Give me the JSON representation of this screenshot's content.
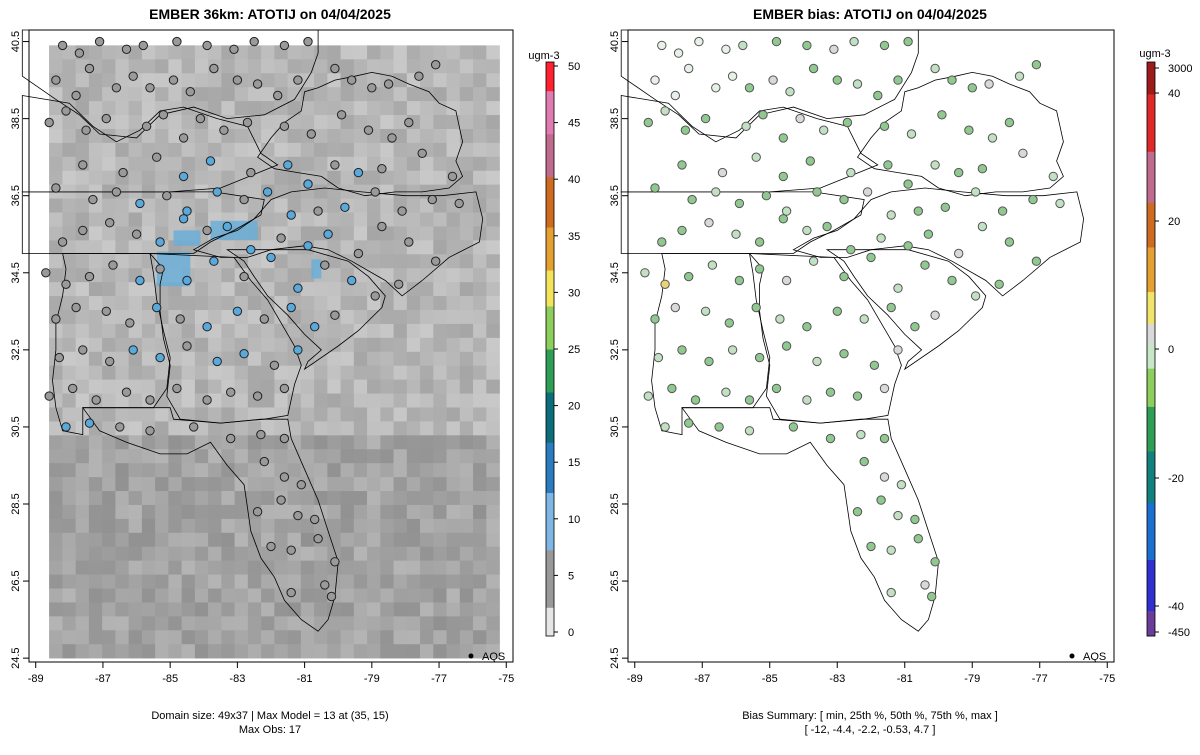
{
  "panels": [
    {
      "title": "EMBER 36km: ATOTIJ on 04/04/2025",
      "legend_unit": "ugm-3",
      "legend_ticks": [
        "0",
        "5",
        "10",
        "15",
        "20",
        "25",
        "30",
        "35",
        "40",
        "45",
        "50"
      ],
      "legend_text": "AQS",
      "footer_lines": [
        "Domain size: 49x37 | Max Model = 13 at (35, 15)",
        "Max Obs: 17"
      ]
    },
    {
      "title": "EMBER bias: ATOTIJ on 04/04/2025",
      "legend_unit": "ugm-3",
      "legend_ticks": [
        "3000",
        "40",
        "20",
        "0",
        "-20",
        "-40",
        "-450"
      ],
      "legend_text": "AQS",
      "footer_lines": [
        "Bias Summary: [ min, 25th %, 50th %, 75th %, max ]",
        "[ -12,   -4.4,   -2.2,   -0.53,   4.7 ]"
      ]
    }
  ],
  "chart_data": [
    {
      "type": "scatter",
      "title": "EMBER 36km: ATOTIJ on 04/04/2025",
      "xticks": [
        "-89",
        "-87",
        "-85",
        "-83",
        "-81",
        "-79",
        "-77",
        "-75"
      ],
      "yticks": [
        "40.5",
        "38.5",
        "36.5",
        "34.5",
        "32.5",
        "30.5",
        "28.5",
        "26.5",
        "24.5"
      ],
      "xlim": [
        -89.2,
        -74.8
      ],
      "ylim": [
        24.4,
        40.8
      ],
      "colorbar_range": [
        0,
        50
      ],
      "legend": "AQS",
      "domain_size": "49x37",
      "max_model": 13,
      "max_model_cell": [
        35,
        15
      ],
      "max_obs": 17,
      "colors": {
        "model_field": "#b8b8b8",
        "obs_low": "#9a9a9a",
        "obs_high": "#5aa9dc"
      }
    },
    {
      "type": "scatter",
      "title": "EMBER bias: ATOTIJ on 04/04/2025",
      "xticks": [
        "-89",
        "-87",
        "-85",
        "-83",
        "-81",
        "-79",
        "-77",
        "-75"
      ],
      "yticks": [
        "40.5",
        "38.5",
        "36.5",
        "34.5",
        "32.5",
        "30.5",
        "28.5",
        "26.5",
        "24.5"
      ],
      "xlim": [
        -89.2,
        -74.8
      ],
      "ylim": [
        24.4,
        40.8
      ],
      "colorbar_ticks": [
        3000,
        40,
        20,
        0,
        -20,
        -40,
        -450
      ],
      "legend": "AQS",
      "bias_summary": {
        "min": -12,
        "p25": -4.4,
        "p50": -2.2,
        "p75": -0.53,
        "max": 4.7
      },
      "colors": {
        "bias_neg": "#8fc98f",
        "bias_pos": "#e8d57a",
        "bias_zero": "#d9d9d9"
      }
    }
  ],
  "stations": [
    [
      -88.2,
      40.4
    ],
    [
      -87.7,
      40.2
    ],
    [
      -87.1,
      40.5
    ],
    [
      -86.3,
      40.3
    ],
    [
      -85.8,
      40.4
    ],
    [
      -84.8,
      40.5
    ],
    [
      -83.9,
      40.4
    ],
    [
      -83.1,
      40.3
    ],
    [
      -82.5,
      40.5
    ],
    [
      -81.6,
      40.4
    ],
    [
      -80.9,
      40.5
    ],
    [
      -88.4,
      39.5
    ],
    [
      -87.8,
      39.1
    ],
    [
      -87.4,
      39.8
    ],
    [
      -86.6,
      39.3
    ],
    [
      -86.1,
      39.6
    ],
    [
      -85.6,
      39.3
    ],
    [
      -84.9,
      39.5
    ],
    [
      -84.4,
      39.2
    ],
    [
      -83.7,
      39.8
    ],
    [
      -83.0,
      39.5
    ],
    [
      -82.4,
      39.4
    ],
    [
      -81.8,
      39.1
    ],
    [
      -81.2,
      39.5
    ],
    [
      -80.1,
      39.8
    ],
    [
      -79.6,
      39.5
    ],
    [
      -79.0,
      39.3
    ],
    [
      -78.5,
      39.4
    ],
    [
      -77.6,
      39.6
    ],
    [
      -77.1,
      39.9
    ],
    [
      -88.6,
      38.4
    ],
    [
      -88.1,
      38.7
    ],
    [
      -87.5,
      38.2
    ],
    [
      -86.9,
      38.5
    ],
    [
      -85.7,
      38.3
    ],
    [
      -85.2,
      38.6
    ],
    [
      -84.6,
      38.0
    ],
    [
      -84.1,
      38.5
    ],
    [
      -83.4,
      38.2
    ],
    [
      -82.7,
      38.4
    ],
    [
      -81.6,
      38.3
    ],
    [
      -80.8,
      38.1
    ],
    [
      -79.9,
      38.6
    ],
    [
      -79.1,
      38.2
    ],
    [
      -78.4,
      38.0
    ],
    [
      -77.9,
      38.4
    ],
    [
      -87.6,
      37.3
    ],
    [
      -86.4,
      37.1
    ],
    [
      -85.4,
      37.5
    ],
    [
      -84.6,
      37.0
    ],
    [
      -83.8,
      37.4
    ],
    [
      -82.6,
      37.1
    ],
    [
      -81.5,
      37.3
    ],
    [
      -80.9,
      36.8
    ],
    [
      -80.1,
      37.3
    ],
    [
      -79.4,
      37.1
    ],
    [
      -78.7,
      37.2
    ],
    [
      -77.5,
      37.6
    ],
    [
      -76.6,
      37.0
    ],
    [
      -88.4,
      36.7
    ],
    [
      -87.3,
      36.4
    ],
    [
      -86.6,
      36.6
    ],
    [
      -85.9,
      36.3
    ],
    [
      -85.1,
      36.5
    ],
    [
      -84.5,
      36.1
    ],
    [
      -83.6,
      36.6
    ],
    [
      -82.8,
      36.4
    ],
    [
      -82.1,
      36.6
    ],
    [
      -81.4,
      36.0
    ],
    [
      -80.6,
      36.1
    ],
    [
      -79.8,
      36.2
    ],
    [
      -78.9,
      36.6
    ],
    [
      -78.1,
      36.1
    ],
    [
      -77.2,
      36.4
    ],
    [
      -76.4,
      36.3
    ],
    [
      -88.2,
      35.3
    ],
    [
      -87.6,
      35.6
    ],
    [
      -86.8,
      35.8
    ],
    [
      -86.0,
      35.5
    ],
    [
      -85.3,
      35.3
    ],
    [
      -84.6,
      35.9
    ],
    [
      -83.9,
      35.6
    ],
    [
      -83.3,
      35.7
    ],
    [
      -82.6,
      35.1
    ],
    [
      -81.7,
      35.4
    ],
    [
      -80.9,
      35.2
    ],
    [
      -80.3,
      35.5
    ],
    [
      -79.4,
      35.0
    ],
    [
      -78.7,
      35.7
    ],
    [
      -77.9,
      35.3
    ],
    [
      -77.1,
      34.8
    ],
    [
      -88.7,
      34.5
    ],
    [
      -88.1,
      34.2
    ],
    [
      -87.4,
      34.4
    ],
    [
      -86.7,
      34.7
    ],
    [
      -85.9,
      34.3
    ],
    [
      -85.3,
      34.6
    ],
    [
      -84.5,
      34.3
    ],
    [
      -83.7,
      34.8
    ],
    [
      -82.8,
      34.4
    ],
    [
      -82.0,
      34.9
    ],
    [
      -81.2,
      34.1
    ],
    [
      -80.4,
      34.7
    ],
    [
      -79.6,
      34.3
    ],
    [
      -78.9,
      33.9
    ],
    [
      -78.2,
      34.2
    ],
    [
      -88.4,
      33.3
    ],
    [
      -87.8,
      33.6
    ],
    [
      -86.9,
      33.5
    ],
    [
      -86.2,
      33.2
    ],
    [
      -85.4,
      33.6
    ],
    [
      -84.7,
      33.3
    ],
    [
      -83.9,
      33.1
    ],
    [
      -83.0,
      33.5
    ],
    [
      -82.2,
      33.3
    ],
    [
      -81.4,
      33.6
    ],
    [
      -80.7,
      33.1
    ],
    [
      -80.1,
      33.4
    ],
    [
      -88.3,
      32.3
    ],
    [
      -87.6,
      32.5
    ],
    [
      -86.8,
      32.2
    ],
    [
      -86.1,
      32.5
    ],
    [
      -85.3,
      32.3
    ],
    [
      -84.5,
      32.6
    ],
    [
      -83.6,
      32.2
    ],
    [
      -82.8,
      32.4
    ],
    [
      -81.9,
      32.1
    ],
    [
      -81.2,
      32.5
    ],
    [
      -88.6,
      31.3
    ],
    [
      -87.9,
      31.5
    ],
    [
      -87.2,
      31.2
    ],
    [
      -86.3,
      31.4
    ],
    [
      -85.6,
      31.2
    ],
    [
      -84.8,
      31.5
    ],
    [
      -83.9,
      31.2
    ],
    [
      -83.2,
      31.4
    ],
    [
      -82.4,
      31.3
    ],
    [
      -81.6,
      31.5
    ],
    [
      -88.1,
      30.5
    ],
    [
      -87.4,
      30.6
    ],
    [
      -86.5,
      30.5
    ],
    [
      -85.6,
      30.4
    ],
    [
      -84.3,
      30.5
    ],
    [
      -83.2,
      30.2
    ],
    [
      -82.3,
      30.3
    ],
    [
      -81.6,
      30.2
    ],
    [
      -82.2,
      29.6
    ],
    [
      -81.6,
      29.2
    ],
    [
      -81.1,
      29.0
    ],
    [
      -82.4,
      28.3
    ],
    [
      -81.7,
      28.6
    ],
    [
      -81.2,
      28.2
    ],
    [
      -80.7,
      28.1
    ],
    [
      -82.0,
      27.4
    ],
    [
      -81.4,
      27.3
    ],
    [
      -80.6,
      27.6
    ],
    [
      -80.1,
      27.0
    ],
    [
      -80.4,
      26.4
    ],
    [
      -81.4,
      26.2
    ],
    [
      -80.2,
      26.1
    ]
  ],
  "mesh": [
    {
      "poly": [
        [
          38.7,
          -76.5
        ],
        [
          38.9,
          -77.0
        ],
        [
          39.2,
          -77.3
        ],
        [
          39.4,
          -77.9
        ],
        [
          39.6,
          -78.4
        ],
        [
          39.7,
          -79.0
        ],
        [
          39.6,
          -79.5
        ],
        [
          39.5,
          -80.1
        ],
        [
          39.3,
          -80.6
        ],
        [
          39.2,
          -81.0
        ],
        [
          38.7,
          -81.1
        ],
        [
          38.4,
          -81.6
        ],
        [
          38.0,
          -82.0
        ],
        [
          37.5,
          -82.4
        ],
        [
          37.2,
          -81.9
        ],
        [
          37.1,
          -81.2
        ],
        [
          37.0,
          -80.5
        ],
        [
          36.7,
          -80.0
        ],
        [
          36.5,
          -79.2
        ],
        [
          36.6,
          -78.3
        ],
        [
          36.6,
          -77.5
        ],
        [
          36.7,
          -76.7
        ],
        [
          37.0,
          -76.3
        ],
        [
          37.4,
          -76.5
        ],
        [
          37.9,
          -76.3
        ],
        [
          38.3,
          -76.4
        ]
      ],
      "shade": 0.74
    },
    {
      "poly": [
        [
          36.6,
          -75.9
        ],
        [
          36.5,
          -76.9
        ],
        [
          36.5,
          -78.0
        ],
        [
          36.6,
          -79.3
        ],
        [
          36.7,
          -80.4
        ],
        [
          36.6,
          -81.4
        ],
        [
          36.4,
          -82.0
        ],
        [
          35.9,
          -82.5
        ],
        [
          35.6,
          -83.0
        ],
        [
          35.4,
          -83.7
        ],
        [
          35.1,
          -84.3
        ],
        [
          34.9,
          -83.5
        ],
        [
          34.9,
          -82.7
        ],
        [
          35.1,
          -82.0
        ],
        [
          35.2,
          -81.0
        ],
        [
          35.1,
          -80.3
        ],
        [
          34.8,
          -79.6
        ],
        [
          34.3,
          -78.6
        ],
        [
          33.9,
          -78.1
        ],
        [
          34.3,
          -77.5
        ],
        [
          34.9,
          -76.7
        ],
        [
          35.3,
          -75.8
        ],
        [
          35.9,
          -75.7
        ]
      ],
      "shade": 0.7
    },
    {
      "poly": [
        [
          35.1,
          -83.3
        ],
        [
          34.8,
          -82.8
        ],
        [
          34.4,
          -82.5
        ],
        [
          33.9,
          -82.1
        ],
        [
          33.4,
          -81.5
        ],
        [
          32.9,
          -81.0
        ],
        [
          32.5,
          -80.5
        ],
        [
          32.2,
          -80.9
        ],
        [
          32.0,
          -81.0
        ],
        [
          32.6,
          -80.0
        ],
        [
          33.0,
          -79.4
        ],
        [
          33.6,
          -78.7
        ],
        [
          33.9,
          -78.6
        ],
        [
          34.4,
          -79.1
        ],
        [
          34.8,
          -79.7
        ],
        [
          35.1,
          -80.9
        ]
      ],
      "shade": 0.72
    },
    {
      "poly": [
        [
          35.0,
          -85.6
        ],
        [
          34.6,
          -85.2
        ],
        [
          34.2,
          -85.3
        ],
        [
          33.5,
          -85.3
        ],
        [
          32.8,
          -85.2
        ],
        [
          32.1,
          -85.0
        ],
        [
          31.3,
          -85.1
        ],
        [
          31.0,
          -84.9
        ],
        [
          30.7,
          -84.7
        ],
        [
          30.6,
          -83.5
        ],
        [
          30.7,
          -82.2
        ],
        [
          30.8,
          -81.5
        ],
        [
          31.6,
          -81.3
        ],
        [
          32.1,
          -81.1
        ],
        [
          32.6,
          -81.3
        ],
        [
          33.2,
          -81.7
        ],
        [
          33.8,
          -82.1
        ],
        [
          34.3,
          -82.6
        ],
        [
          34.9,
          -83.1
        ]
      ],
      "shade": 0.62
    },
    {
      "poly": [
        [
          35.0,
          -88.2
        ],
        [
          34.6,
          -88.1
        ],
        [
          33.9,
          -88.2
        ],
        [
          33.2,
          -88.4
        ],
        [
          32.5,
          -88.4
        ],
        [
          31.7,
          -88.5
        ],
        [
          31.0,
          -88.4
        ],
        [
          30.4,
          -88.2
        ],
        [
          30.3,
          -87.6
        ],
        [
          31.0,
          -87.6
        ],
        [
          31.0,
          -86.5
        ],
        [
          31.0,
          -85.5
        ],
        [
          31.5,
          -85.1
        ],
        [
          32.3,
          -85.0
        ],
        [
          33.0,
          -85.2
        ],
        [
          33.8,
          -85.4
        ],
        [
          34.5,
          -85.5
        ],
        [
          35.0,
          -85.6
        ]
      ],
      "shade": 0.6
    },
    {
      "poly": [
        [
          36.6,
          -89.4
        ],
        [
          36.6,
          -88.0
        ],
        [
          36.6,
          -86.5
        ],
        [
          36.6,
          -85.0
        ],
        [
          36.6,
          -83.7
        ],
        [
          36.4,
          -82.2
        ],
        [
          36.0,
          -82.3
        ],
        [
          35.6,
          -83.1
        ],
        [
          35.3,
          -83.8
        ],
        [
          35.0,
          -84.3
        ],
        [
          35.0,
          -85.6
        ],
        [
          35.0,
          -86.9
        ],
        [
          35.0,
          -88.2
        ],
        [
          35.0,
          -89.4
        ]
      ],
      "shade": 0.66
    },
    {
      "poly": [
        [
          39.1,
          -89.4
        ],
        [
          38.9,
          -88.0
        ],
        [
          38.3,
          -87.3
        ],
        [
          37.9,
          -86.6
        ],
        [
          38.2,
          -85.9
        ],
        [
          38.7,
          -85.3
        ],
        [
          38.8,
          -84.6
        ],
        [
          38.5,
          -83.6
        ],
        [
          38.3,
          -82.7
        ],
        [
          37.6,
          -82.3
        ],
        [
          37.3,
          -81.8
        ],
        [
          36.7,
          -83.5
        ],
        [
          36.6,
          -85.0
        ],
        [
          36.6,
          -86.8
        ],
        [
          36.6,
          -88.1
        ],
        [
          36.6,
          -89.4
        ]
      ],
      "shade": 0.7
    },
    {
      "poly": [
        [
          40.8,
          -89.4
        ],
        [
          40.8,
          -87.5
        ],
        [
          40.8,
          -85.7
        ],
        [
          40.8,
          -84.0
        ],
        [
          40.8,
          -82.4
        ],
        [
          40.8,
          -80.6
        ],
        [
          40.2,
          -80.6
        ],
        [
          39.7,
          -80.8
        ],
        [
          39.0,
          -81.3
        ],
        [
          38.6,
          -82.2
        ],
        [
          38.5,
          -83.3
        ],
        [
          38.8,
          -84.3
        ],
        [
          38.6,
          -85.3
        ],
        [
          38.0,
          -86.0
        ],
        [
          38.1,
          -87.1
        ],
        [
          38.6,
          -87.7
        ],
        [
          39.0,
          -88.4
        ],
        [
          39.6,
          -89.4
        ]
      ],
      "shade": 0.68
    },
    {
      "poly": [
        [
          31.0,
          -87.6
        ],
        [
          30.4,
          -87.1
        ],
        [
          30.1,
          -86.3
        ],
        [
          29.8,
          -85.3
        ],
        [
          29.8,
          -84.5
        ],
        [
          30.1,
          -83.8
        ],
        [
          29.5,
          -83.3
        ],
        [
          29.0,
          -82.8
        ],
        [
          28.4,
          -82.7
        ],
        [
          27.8,
          -82.6
        ],
        [
          27.1,
          -82.3
        ],
        [
          26.6,
          -81.9
        ],
        [
          26.0,
          -81.6
        ],
        [
          25.5,
          -81.1
        ],
        [
          25.2,
          -80.6
        ],
        [
          25.5,
          -80.3
        ],
        [
          26.1,
          -80.1
        ],
        [
          27.0,
          -80.0
        ],
        [
          27.8,
          -80.3
        ],
        [
          28.6,
          -80.6
        ],
        [
          29.4,
          -81.0
        ],
        [
          30.2,
          -81.4
        ],
        [
          30.7,
          -81.5
        ],
        [
          30.7,
          -82.3
        ],
        [
          30.6,
          -83.5
        ],
        [
          30.7,
          -84.9
        ],
        [
          31.0,
          -85.0
        ],
        [
          31.0,
          -86.0
        ],
        [
          31.0,
          -87.0
        ]
      ],
      "shade": 0.76
    }
  ]
}
